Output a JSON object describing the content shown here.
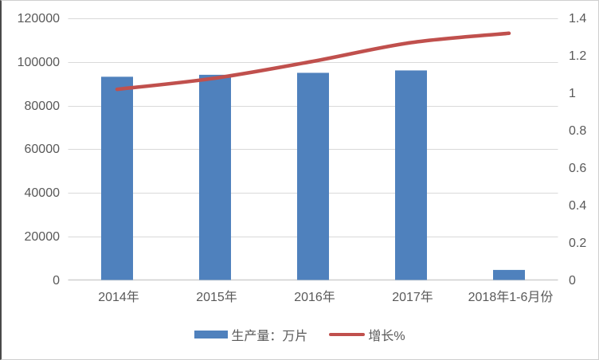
{
  "chart_data": {
    "type": "bar",
    "subtype": "combo-bar-line-dual-axis",
    "title": "",
    "categories": [
      "2014年",
      "2015年",
      "2016年",
      "2017年",
      "2018年1-6月份"
    ],
    "series": [
      {
        "name": "生产量：万片",
        "type": "bar",
        "axis": "left",
        "color": "#4F81BD",
        "values": [
          93200,
          94100,
          95000,
          96100,
          4600
        ]
      },
      {
        "name": "增长%",
        "type": "line",
        "axis": "right",
        "color": "#C0504D",
        "values": [
          1.02,
          1.08,
          1.17,
          1.27,
          1.32
        ]
      }
    ],
    "left_axis": {
      "min": 0,
      "max": 120000,
      "step": 20000,
      "ticks": [
        "0",
        "20000",
        "40000",
        "60000",
        "80000",
        "100000",
        "120000"
      ]
    },
    "right_axis": {
      "min": 0,
      "max": 1.4,
      "step": 0.2,
      "ticks": [
        "0",
        "0.2",
        "0.4",
        "0.6",
        "0.8",
        "1",
        "1.2",
        "1.4"
      ]
    },
    "grid": true,
    "legend_position": "bottom",
    "line_smoothed": true
  },
  "colors": {
    "background": "#FFFFFF",
    "text": "#595959",
    "gridline": "#D9D9D9",
    "axis_line": "#CFCFCF",
    "frame_border": "#CFCFCF",
    "frame_border_left": "#4A4A4A"
  }
}
